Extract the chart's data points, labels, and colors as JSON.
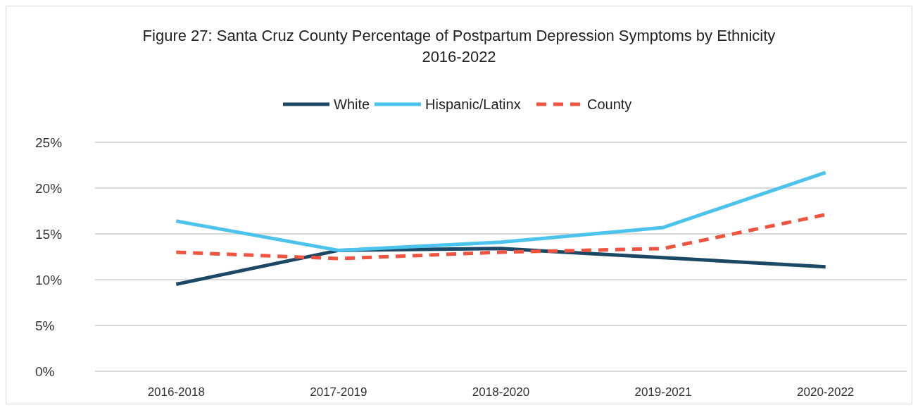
{
  "chart_data": {
    "type": "line",
    "title": "Figure 27: Santa Cruz County Percentage of Postpartum Depression Symptoms by Ethnicity 2016-2022",
    "categories": [
      "2016-2018",
      "2017-2019",
      "2018-2020",
      "2019-2021",
      "2020-2022"
    ],
    "series": [
      {
        "name": "White",
        "color": "#1b4965",
        "values": [
          9.5,
          13.2,
          13.4,
          12.4,
          11.4
        ]
      },
      {
        "name": "Hispanic/Latinx",
        "color": "#4cc3ec",
        "values": [
          16.4,
          13.2,
          14.1,
          15.7,
          21.7
        ]
      },
      {
        "name": "County",
        "color": "#ef5440",
        "line_style": "dashed",
        "values": [
          13.0,
          12.3,
          13.0,
          13.4,
          17.1
        ]
      }
    ],
    "ylim": [
      0,
      25
    ],
    "yticks": [
      {
        "value": 0,
        "label": "0%"
      },
      {
        "value": 5,
        "label": "5%"
      },
      {
        "value": 10,
        "label": "10%"
      },
      {
        "value": 15,
        "label": "15%"
      },
      {
        "value": 20,
        "label": "20%"
      },
      {
        "value": 25,
        "label": "25%"
      }
    ],
    "grid": "y",
    "legend": "top",
    "marker": "none"
  }
}
